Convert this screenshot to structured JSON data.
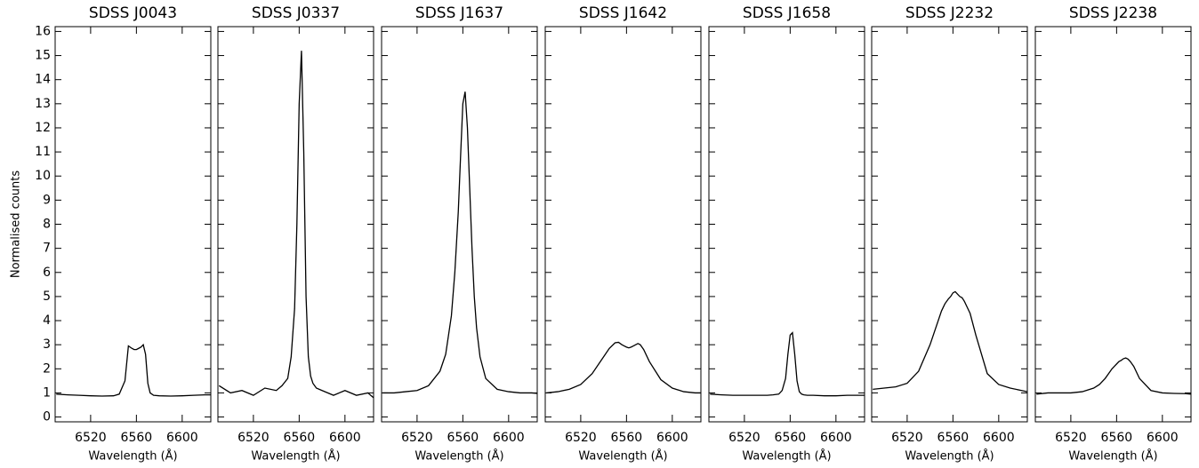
{
  "chart_data": [
    {
      "type": "line",
      "title": "SDSS J0043",
      "x_label": "Wavelength (Å)",
      "y_label": "Normalised counts",
      "color": "#000000",
      "x": [
        6490,
        6500,
        6510,
        6520,
        6530,
        6540,
        6545,
        6550,
        6553,
        6556,
        6558,
        6560,
        6562,
        6564,
        6566,
        6568,
        6570,
        6572,
        6575,
        6580,
        6590,
        6600,
        6610,
        6620,
        6625
      ],
      "values": [
        0.95,
        0.92,
        0.9,
        0.88,
        0.87,
        0.88,
        0.95,
        1.5,
        2.95,
        2.85,
        2.8,
        2.8,
        2.85,
        2.9,
        3.0,
        2.6,
        1.4,
        1.0,
        0.9,
        0.88,
        0.87,
        0.88,
        0.9,
        0.92,
        0.92
      ],
      "xlim": [
        6489,
        6625
      ],
      "ylim": [
        -0.2,
        16.2
      ],
      "xticks": [
        6520,
        6560,
        6600
      ],
      "yticks": [
        0,
        1,
        2,
        3,
        4,
        5,
        6,
        7,
        8,
        9,
        10,
        11,
        12,
        13,
        14,
        15,
        16
      ]
    },
    {
      "type": "line",
      "title": "SDSS J0337",
      "x_label": "Wavelength (Å)",
      "color": "#000000",
      "x": [
        6490,
        6500,
        6510,
        6520,
        6530,
        6540,
        6545,
        6550,
        6553,
        6556,
        6558,
        6560,
        6562,
        6564,
        6566,
        6568,
        6570,
        6572,
        6575,
        6580,
        6590,
        6600,
        6610,
        6620,
        6625
      ],
      "values": [
        1.3,
        1.0,
        1.1,
        0.9,
        1.2,
        1.1,
        1.3,
        1.6,
        2.5,
        4.5,
        8,
        13,
        15.2,
        11,
        5,
        2.5,
        1.7,
        1.4,
        1.2,
        1.1,
        0.9,
        1.1,
        0.9,
        1.0,
        0.8
      ],
      "xlim": [
        6489,
        6625
      ],
      "ylim": [
        -0.2,
        16.2
      ],
      "xticks": [
        6520,
        6560,
        6600
      ],
      "yticks": [
        0,
        1,
        2,
        3,
        4,
        5,
        6,
        7,
        8,
        9,
        10,
        11,
        12,
        13,
        14,
        15,
        16
      ]
    },
    {
      "type": "line",
      "title": "SDSS J1637",
      "x_label": "Wavelength (Å)",
      "color": "#000000",
      "x": [
        6490,
        6500,
        6510,
        6520,
        6530,
        6540,
        6545,
        6550,
        6553,
        6556,
        6558,
        6560,
        6562,
        6564,
        6566,
        6568,
        6570,
        6572,
        6575,
        6580,
        6590,
        6600,
        6610,
        6620,
        6625
      ],
      "values": [
        1.0,
        1.0,
        1.05,
        1.1,
        1.3,
        1.9,
        2.6,
        4.2,
        6,
        8.5,
        10.8,
        13,
        13.5,
        12,
        9.5,
        7,
        5,
        3.7,
        2.5,
        1.6,
        1.15,
        1.05,
        1.0,
        1.0,
        0.98
      ],
      "xlim": [
        6489,
        6625
      ],
      "ylim": [
        -0.2,
        16.2
      ],
      "xticks": [
        6520,
        6560,
        6600
      ],
      "yticks": [
        0,
        1,
        2,
        3,
        4,
        5,
        6,
        7,
        8,
        9,
        10,
        11,
        12,
        13,
        14,
        15,
        16
      ]
    },
    {
      "type": "line",
      "title": "SDSS J1642",
      "x_label": "Wavelength (Å)",
      "color": "#000000",
      "x": [
        6490,
        6500,
        6510,
        6520,
        6530,
        6540,
        6545,
        6550,
        6553,
        6556,
        6558,
        6560,
        6562,
        6564,
        6566,
        6568,
        6570,
        6572,
        6575,
        6580,
        6590,
        6600,
        6610,
        6620,
        6625
      ],
      "values": [
        1.0,
        1.05,
        1.15,
        1.35,
        1.8,
        2.5,
        2.85,
        3.08,
        3.1,
        3.0,
        2.95,
        2.9,
        2.87,
        2.9,
        2.95,
        3.0,
        3.05,
        3.0,
        2.8,
        2.3,
        1.55,
        1.2,
        1.05,
        1.0,
        1.0
      ],
      "xlim": [
        6489,
        6625
      ],
      "ylim": [
        -0.2,
        16.2
      ],
      "xticks": [
        6520,
        6560,
        6600
      ],
      "yticks": [
        0,
        1,
        2,
        3,
        4,
        5,
        6,
        7,
        8,
        9,
        10,
        11,
        12,
        13,
        14,
        15,
        16
      ]
    },
    {
      "type": "line",
      "title": "SDSS J1658",
      "x_label": "Wavelength (Å)",
      "color": "#000000",
      "x": [
        6490,
        6500,
        6510,
        6520,
        6530,
        6540,
        6545,
        6550,
        6553,
        6556,
        6558,
        6560,
        6562,
        6564,
        6566,
        6568,
        6570,
        6572,
        6575,
        6580,
        6590,
        6600,
        6610,
        6620,
        6625
      ],
      "values": [
        0.95,
        0.92,
        0.9,
        0.9,
        0.9,
        0.9,
        0.92,
        0.95,
        1.1,
        1.6,
        2.6,
        3.4,
        3.5,
        2.6,
        1.5,
        1.05,
        0.95,
        0.92,
        0.9,
        0.9,
        0.88,
        0.88,
        0.9,
        0.9,
        0.9
      ],
      "xlim": [
        6489,
        6625
      ],
      "ylim": [
        -0.2,
        16.2
      ],
      "xticks": [
        6520,
        6560,
        6600
      ],
      "yticks": [
        0,
        1,
        2,
        3,
        4,
        5,
        6,
        7,
        8,
        9,
        10,
        11,
        12,
        13,
        14,
        15,
        16
      ]
    },
    {
      "type": "line",
      "title": "SDSS J2232",
      "x_label": "Wavelength (Å)",
      "color": "#000000",
      "x": [
        6490,
        6500,
        6510,
        6520,
        6530,
        6540,
        6545,
        6550,
        6553,
        6556,
        6558,
        6560,
        6562,
        6564,
        6566,
        6568,
        6570,
        6572,
        6575,
        6580,
        6590,
        6600,
        6610,
        6620,
        6625
      ],
      "values": [
        1.15,
        1.2,
        1.25,
        1.4,
        1.9,
        3.0,
        3.7,
        4.4,
        4.7,
        4.9,
        5.0,
        5.15,
        5.2,
        5.1,
        5.0,
        4.95,
        4.8,
        4.6,
        4.3,
        3.4,
        1.8,
        1.35,
        1.2,
        1.1,
        1.05
      ],
      "xlim": [
        6489,
        6625
      ],
      "ylim": [
        -0.2,
        16.2
      ],
      "xticks": [
        6520,
        6560,
        6600
      ],
      "yticks": [
        0,
        1,
        2,
        3,
        4,
        5,
        6,
        7,
        8,
        9,
        10,
        11,
        12,
        13,
        14,
        15,
        16
      ]
    },
    {
      "type": "line",
      "title": "SDSS J2238",
      "x_label": "Wavelength (Å)",
      "color": "#000000",
      "x": [
        6490,
        6500,
        6510,
        6520,
        6530,
        6540,
        6545,
        6550,
        6553,
        6556,
        6558,
        6560,
        6562,
        6564,
        6566,
        6568,
        6570,
        6572,
        6575,
        6580,
        6590,
        6600,
        6610,
        6620,
        6625
      ],
      "values": [
        0.95,
        1.0,
        1.0,
        1.0,
        1.05,
        1.2,
        1.35,
        1.6,
        1.8,
        2.0,
        2.1,
        2.2,
        2.3,
        2.35,
        2.42,
        2.45,
        2.4,
        2.3,
        2.1,
        1.6,
        1.1,
        1.0,
        0.98,
        0.97,
        0.95
      ],
      "xlim": [
        6489,
        6625
      ],
      "ylim": [
        -0.2,
        16.2
      ],
      "xticks": [
        6520,
        6560,
        6600
      ],
      "yticks": [
        0,
        1,
        2,
        3,
        4,
        5,
        6,
        7,
        8,
        9,
        10,
        11,
        12,
        13,
        14,
        15,
        16
      ]
    }
  ]
}
